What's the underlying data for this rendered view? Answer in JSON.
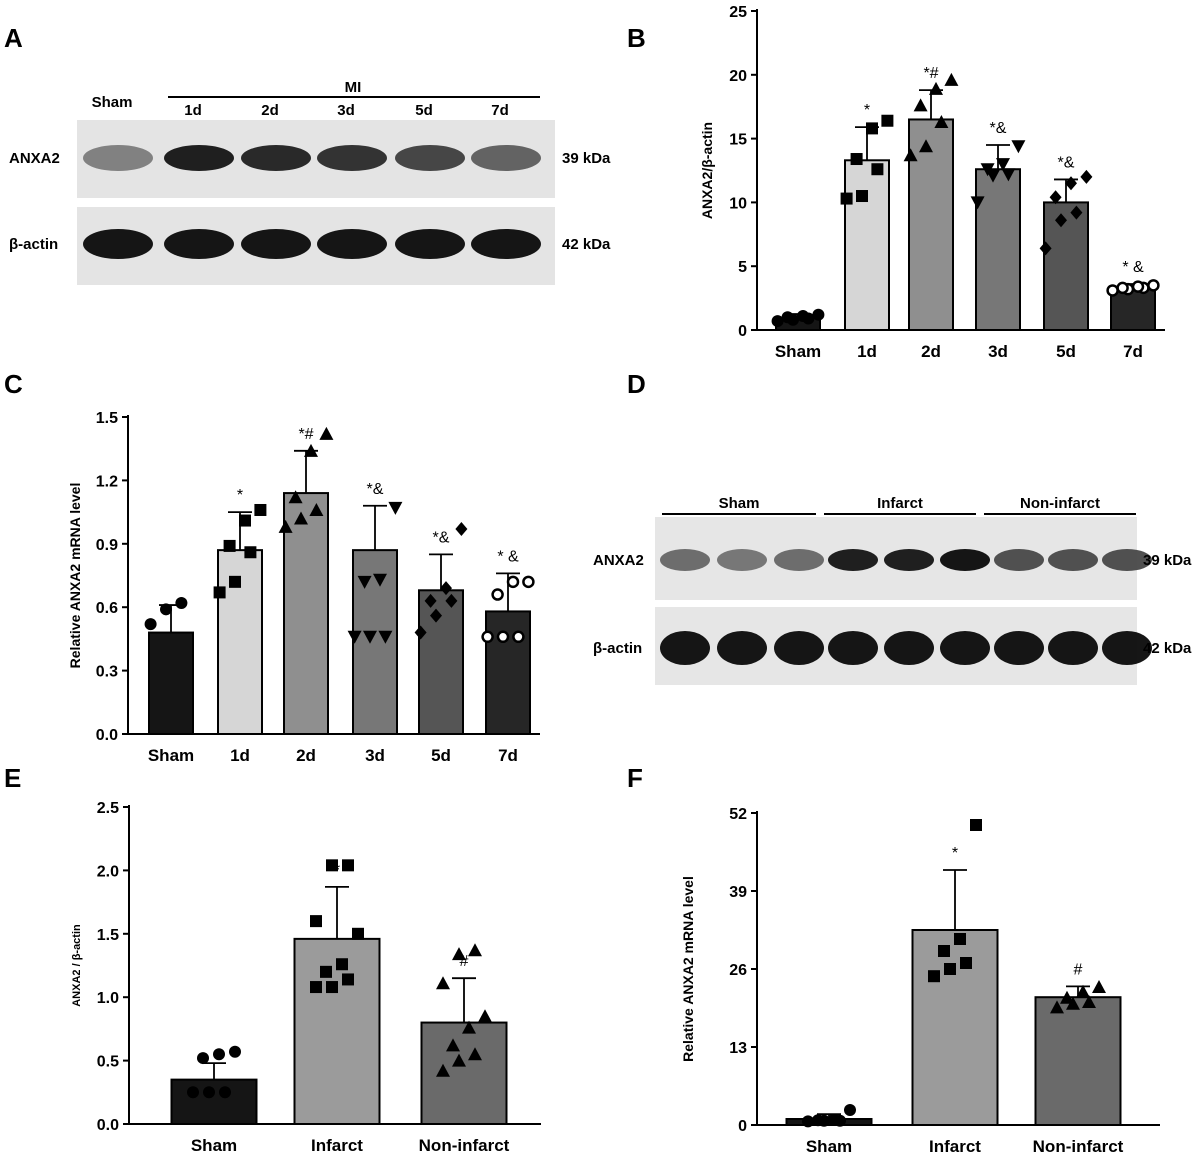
{
  "panel_letters": [
    "A",
    "B",
    "C",
    "D",
    "E",
    "F"
  ],
  "blot_a": {
    "group_sham": "Sham",
    "group_mi": "MI",
    "lanes": [
      "1d",
      "2d",
      "3d",
      "5d",
      "7d"
    ],
    "rows": [
      {
        "protein": "ANXA2",
        "size": "39 kDa",
        "intensity": [
          0.45,
          0.95,
          0.9,
          0.85,
          0.75,
          0.6
        ]
      },
      {
        "protein": "β-actin",
        "size": "42 kDa",
        "intensity": [
          1,
          1,
          1,
          1,
          1,
          1
        ]
      }
    ]
  },
  "blot_d": {
    "groups": [
      "Sham",
      "Infarct",
      "Non-infarct"
    ],
    "rows": [
      {
        "protein": "ANXA2",
        "size": "39 kDa",
        "intensity": [
          0.55,
          0.5,
          0.55,
          0.95,
          0.95,
          1.0,
          0.7,
          0.7,
          0.7
        ]
      },
      {
        "protein": "β-actin",
        "size": "42 kDa",
        "intensity": [
          1,
          1,
          1,
          1,
          1,
          1,
          1,
          1,
          1
        ]
      }
    ]
  },
  "chart_data": [
    {
      "panel": "B",
      "type": "bar",
      "categories": [
        "Sham",
        "1d",
        "2d",
        "3d",
        "5d",
        "7d"
      ],
      "values": [
        0.95,
        13.3,
        16.5,
        12.6,
        10.0,
        3.3
      ],
      "errors": [
        0.3,
        2.6,
        2.3,
        1.9,
        1.8,
        0.3
      ],
      "annotations": [
        "",
        "*",
        "*#",
        "*&",
        "*&",
        "* &"
      ],
      "points": [
        [
          0.7,
          0.8,
          0.9,
          1.0,
          1.1,
          1.2
        ],
        [
          10.3,
          10.5,
          12.6,
          13.4,
          15.8,
          16.4
        ],
        [
          13.7,
          14.4,
          16.3,
          17.6,
          18.9,
          19.6
        ],
        [
          10.0,
          12.1,
          12.2,
          12.6,
          13.0,
          14.4
        ],
        [
          6.4,
          8.6,
          9.2,
          10.4,
          11.5,
          12.0
        ],
        [
          3.1,
          3.2,
          3.3,
          3.3,
          3.4,
          3.5
        ]
      ],
      "markers": [
        "circle",
        "square",
        "triangle",
        "triangle-down",
        "diamond",
        "circle-open"
      ],
      "fills": [
        "#151515",
        "#d6d6d6",
        "#8f8f8f",
        "#777777",
        "#555555",
        "#262626"
      ],
      "ylabel": "ANXA2/β-actin",
      "ylim": [
        0,
        25
      ],
      "yticks": [
        "0",
        "5",
        "10",
        "15",
        "20",
        "25"
      ]
    },
    {
      "panel": "C",
      "type": "bar",
      "categories": [
        "Sham",
        "1d",
        "2d",
        "3d",
        "5d",
        "7d"
      ],
      "values": [
        0.48,
        0.87,
        1.14,
        0.87,
        0.68,
        0.58
      ],
      "errors": [
        0.13,
        0.18,
        0.2,
        0.21,
        0.17,
        0.18
      ],
      "annotations": [
        "",
        "*",
        "*#",
        "*&",
        "*&",
        "* &"
      ],
      "points": [
        [
          0.52,
          0.59,
          0.62
        ],
        [
          0.67,
          0.72,
          0.86,
          0.89,
          1.01,
          1.06
        ],
        [
          0.98,
          1.02,
          1.06,
          1.12,
          1.34,
          1.42
        ],
        [
          0.46,
          0.46,
          0.46,
          0.72,
          0.73,
          1.07
        ],
        [
          0.48,
          0.56,
          0.63,
          0.63,
          0.69,
          0.97
        ],
        [
          0.46,
          0.46,
          0.46,
          0.66,
          0.72,
          0.72
        ]
      ],
      "markers": [
        "circle",
        "square",
        "triangle",
        "triangle-down",
        "diamond",
        "circle-open"
      ],
      "fills": [
        "#151515",
        "#d6d6d6",
        "#8f8f8f",
        "#777777",
        "#555555",
        "#262626"
      ],
      "ylabel": "Relative ANXA2 mRNA level",
      "ylim": [
        0,
        1.5
      ],
      "yticks": [
        "0.0",
        "0.3",
        "0.6",
        "0.9",
        "1.2",
        "1.5"
      ]
    },
    {
      "panel": "E",
      "type": "bar",
      "categories": [
        "Sham",
        "Infarct",
        "Non-infarct"
      ],
      "values": [
        0.35,
        1.46,
        0.8
      ],
      "errors": [
        0.13,
        0.41,
        0.35
      ],
      "annotations": [
        "",
        "*",
        "#"
      ],
      "points": [
        [
          0.25,
          0.25,
          0.25,
          0.52,
          0.55,
          0.57
        ],
        [
          1.08,
          1.08,
          1.14,
          1.2,
          1.26,
          1.5,
          1.6,
          2.04,
          2.04
        ],
        [
          0.42,
          0.5,
          0.55,
          0.62,
          0.76,
          0.85,
          1.11,
          1.34,
          1.37
        ]
      ],
      "markers": [
        "circle",
        "square",
        "triangle"
      ],
      "fills": [
        "#151515",
        "#9b9b9b",
        "#6a6a6a"
      ],
      "ylabel": "ANXA2 / β-actin",
      "ylim": [
        0,
        2.5
      ],
      "yticks": [
        "0.0",
        "0.5",
        "1.0",
        "1.5",
        "2.0",
        "2.5"
      ]
    },
    {
      "panel": "F",
      "type": "bar",
      "categories": [
        "Sham",
        "Infarct",
        "Non-infarct"
      ],
      "values": [
        1.0,
        32.5,
        21.3
      ],
      "errors": [
        0.8,
        10.0,
        1.8
      ],
      "annotations": [
        "",
        "*",
        "#"
      ],
      "points": [
        [
          0.6,
          0.7,
          0.7,
          0.8,
          0.9,
          2.5
        ],
        [
          24.8,
          26.0,
          27.0,
          29.0,
          31.0,
          50.0
        ],
        [
          19.6,
          20.2,
          20.5,
          21.2,
          22.2,
          23.0
        ]
      ],
      "markers": [
        "circle",
        "square",
        "triangle"
      ],
      "fills": [
        "#151515",
        "#9b9b9b",
        "#6a6a6a"
      ],
      "ylabel": "Relative ANXA2 mRNA level",
      "ylim": [
        0,
        52
      ],
      "yticks": [
        "0",
        "13",
        "26",
        "39",
        "52"
      ]
    }
  ]
}
